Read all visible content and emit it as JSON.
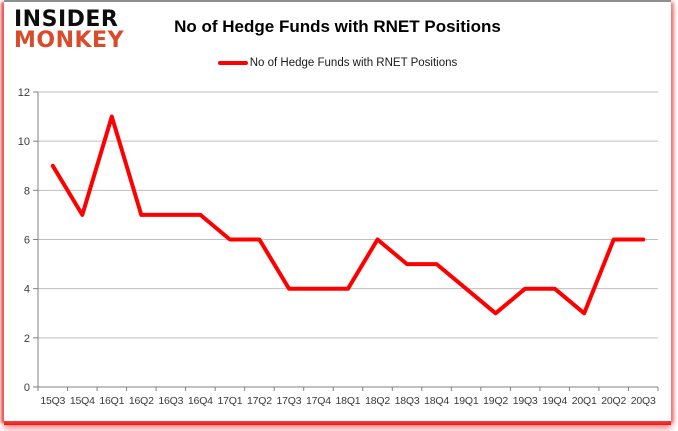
{
  "logo": {
    "line1": "INSIDER",
    "line2": "MONKEY"
  },
  "header": {
    "title": "No of Hedge Funds with RNET Positions"
  },
  "legend": {
    "label": "No of Hedge Funds with RNET Positions",
    "line_color": "#ff0000"
  },
  "chart_data": {
    "type": "line",
    "title": "No of Hedge Funds with RNET Positions",
    "categories": [
      "15Q3",
      "15Q4",
      "16Q1",
      "16Q2",
      "16Q3",
      "16Q4",
      "17Q1",
      "17Q2",
      "17Q3",
      "17Q4",
      "18Q1",
      "18Q2",
      "18Q3",
      "18Q4",
      "19Q1",
      "19Q2",
      "19Q3",
      "19Q4",
      "20Q1",
      "20Q2",
      "20Q3"
    ],
    "series": [
      {
        "name": "No of Hedge Funds with RNET Positions",
        "color": "#ff0000",
        "values": [
          9,
          7,
          11,
          7,
          7,
          7,
          6,
          6,
          4,
          4,
          4,
          6,
          5,
          5,
          4,
          3,
          4,
          4,
          3,
          6,
          6
        ]
      }
    ],
    "xlabel": "",
    "ylabel": "",
    "ylim": [
      0,
      12
    ],
    "ytick_step": 2,
    "grid": true,
    "legend_position": "top-center"
  },
  "colors": {
    "line_red": "#ff0000",
    "logo_red": "#d94b2b",
    "gridline": "#bfbfbf",
    "axis": "#808080",
    "border_top_gray": "#8f8f8f",
    "border_glow_red": "#ff0000",
    "tick_label": "#3a3a3a"
  }
}
